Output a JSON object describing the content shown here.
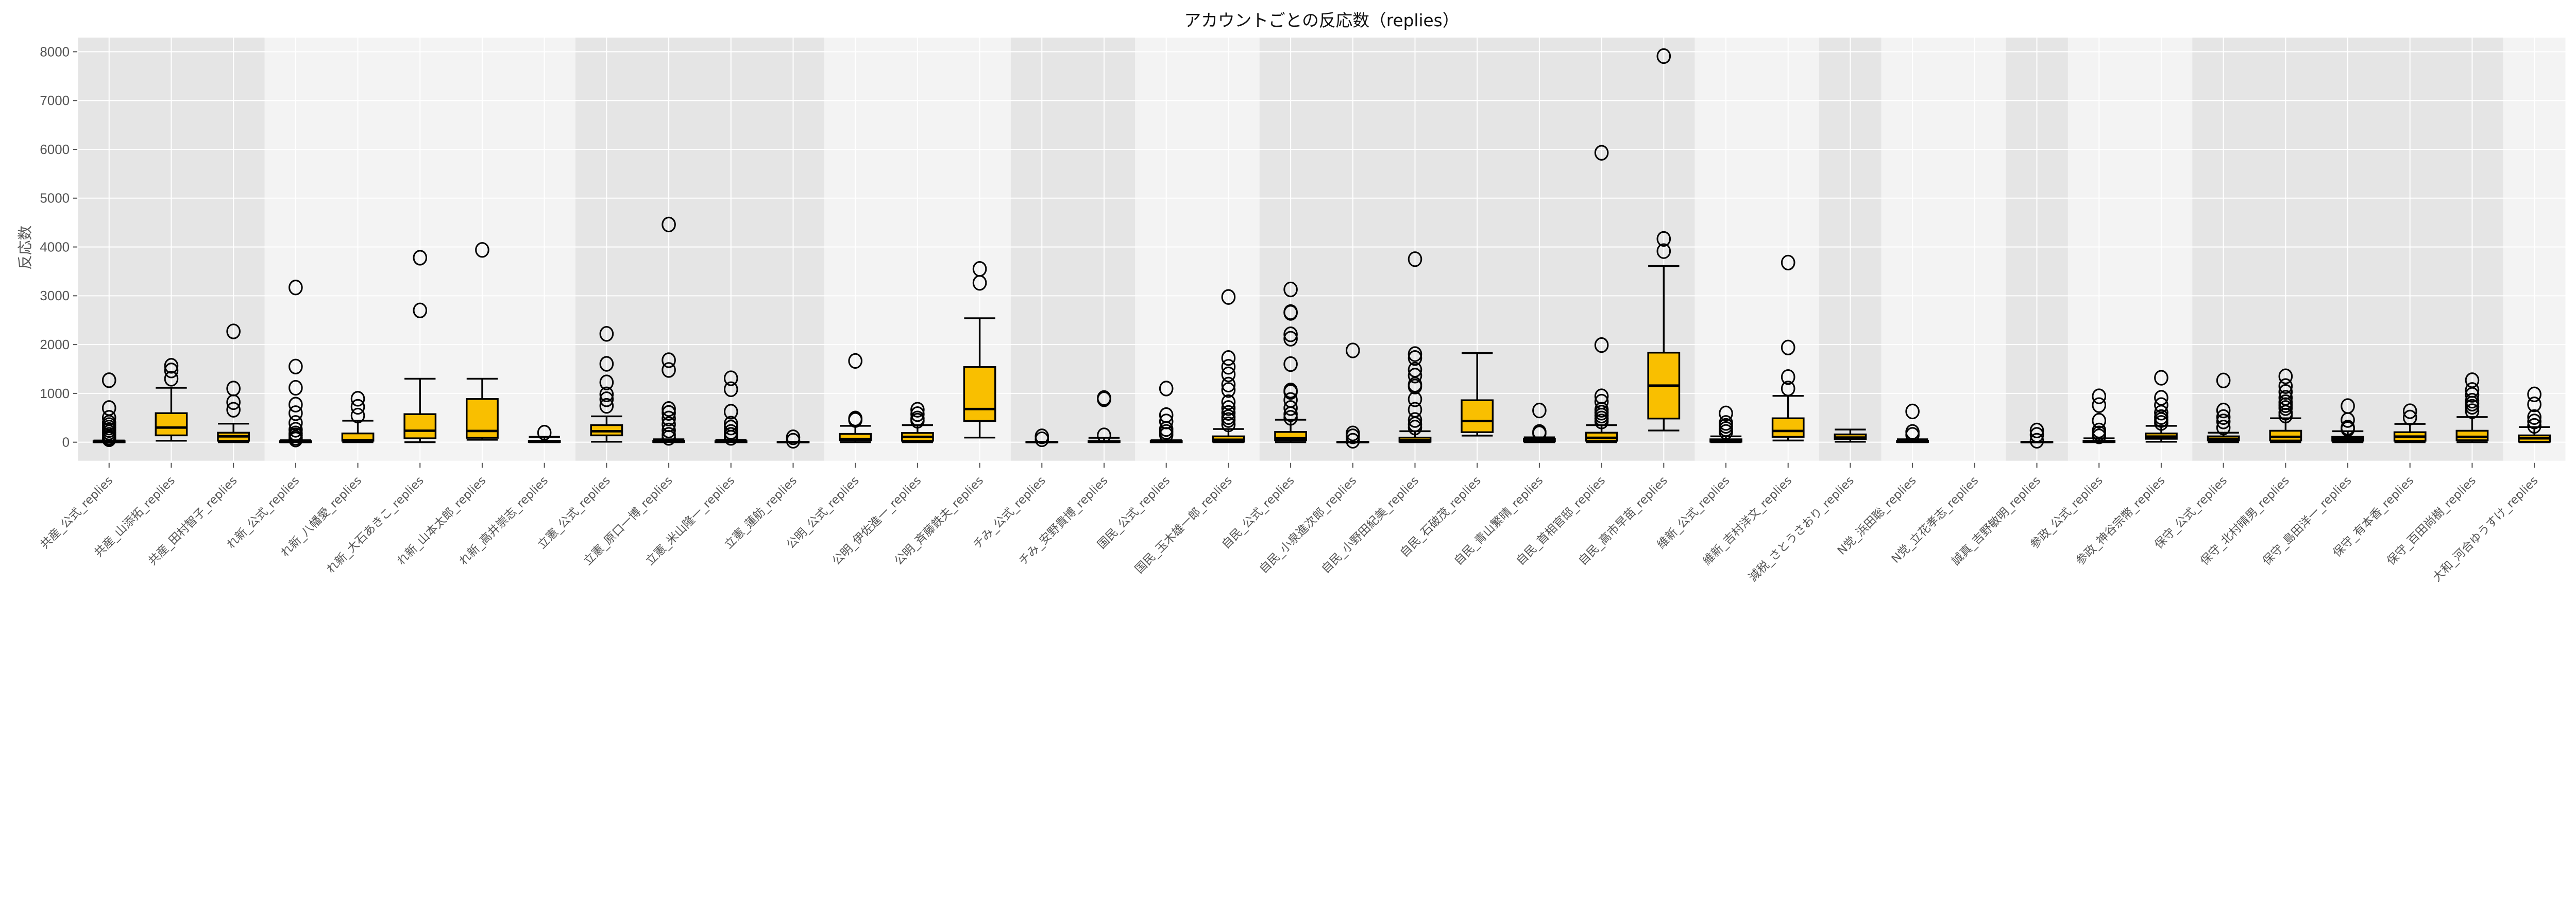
{
  "chart_data": {
    "type": "box",
    "title": "アカウントごとの反応数（replies）",
    "xlabel": "",
    "ylabel": "反応数",
    "ylim": [
      -380,
      8290
    ],
    "yticks": [
      0,
      1000,
      2000,
      3000,
      4000,
      5000,
      6000,
      7000,
      8000
    ],
    "grid": true,
    "colors": {
      "box_fill": "#f9bf00",
      "band_dark": "#e5e5e5",
      "band_light": "#f3f3f3",
      "grid": "#ffffff",
      "edge": "#000000"
    },
    "categories": [
      "共産_公式_replies",
      "共産_山添拓_replies",
      "共産_田村智子_replies",
      "れ新_公式_replies",
      "れ新_八幡愛_replies",
      "れ新_大石あきこ_replies",
      "れ新_山本太郎_replies",
      "れ新_高井崇志_replies",
      "立憲_公式_replies",
      "立憲_原口一博_replies",
      "立憲_米山隆一_replies",
      "立憲_蓮舫_replies",
      "公明_公式_replies",
      "公明_伊佐進一_replies",
      "公明_斉藤鉄夫_replies",
      "チみ_公式_replies",
      "チみ_安野貴博_replies",
      "国民_公式_replies",
      "国民_玉木雄一郎_replies",
      "自民_公式_replies",
      "自民_小泉進次郎_replies",
      "自民_小野田紀美_replies",
      "自民_石破茂_replies",
      "自民_青山繁晴_replies",
      "自民_首相官邸_replies",
      "自民_高市早苗_replies",
      "維新_公式_replies",
      "維新_吉村洋文_replies",
      "減税_さとうさおり_replies",
      "N党_浜田聡_replies",
      "N党_立花孝志_replies",
      "誠真_吉野敏明_replies",
      "参政_公式_replies",
      "参政_神谷宗幣_replies",
      "保守_公式_replies",
      "保守_北村晴男_replies",
      "保守_島田洋一_replies",
      "保守_有本香_replies",
      "保守_百田尚樹_replies",
      "大和_河合ゆうすけ_replies"
    ],
    "boxes": [
      {
        "whislo": 0,
        "q1": 0,
        "med": 5,
        "q3": 20,
        "whishi": 35,
        "fliers": [
          1270,
          700,
          500,
          400,
          350,
          300,
          250,
          200,
          150,
          100,
          80,
          60
        ]
      },
      {
        "whislo": 30,
        "q1": 140,
        "med": 300,
        "q3": 595,
        "whishi": 1115,
        "fliers": [
          1565,
          1470,
          1300
        ]
      },
      {
        "whislo": 0,
        "q1": 30,
        "med": 120,
        "q3": 195,
        "whishi": 380,
        "fliers": [
          2270,
          1100,
          820,
          665
        ]
      },
      {
        "whislo": 0,
        "q1": 0,
        "med": 5,
        "q3": 20,
        "whishi": 40,
        "fliers": [
          3170,
          1550,
          1115,
          770,
          595,
          395,
          255,
          180,
          140,
          90,
          55
        ]
      },
      {
        "whislo": 0,
        "q1": 30,
        "med": 40,
        "q3": 180,
        "whishi": 440,
        "fliers": [
          890,
          725,
          545
        ]
      },
      {
        "whislo": 0,
        "q1": 80,
        "med": 235,
        "q3": 575,
        "whishi": 1300,
        "fliers": [
          3780,
          2700
        ]
      },
      {
        "whislo": 50,
        "q1": 90,
        "med": 230,
        "q3": 885,
        "whishi": 1300,
        "fliers": [
          3940
        ]
      },
      {
        "whislo": 0,
        "q1": 5,
        "med": 15,
        "q3": 30,
        "whishi": 110,
        "fliers": [
          195
        ]
      },
      {
        "whislo": 10,
        "q1": 140,
        "med": 225,
        "q3": 350,
        "whishi": 530,
        "fliers": [
          2220,
          1605,
          1225,
          980,
          880,
          745
        ]
      },
      {
        "whislo": 0,
        "q1": 5,
        "med": 15,
        "q3": 30,
        "whishi": 60,
        "fliers": [
          4460,
          1680,
          1480,
          680,
          600,
          485,
          365,
          240,
          150,
          90
        ]
      },
      {
        "whislo": 0,
        "q1": 0,
        "med": 8,
        "q3": 20,
        "whishi": 45,
        "fliers": [
          1310,
          1085,
          625,
          380,
          300,
          210,
          150,
          90
        ]
      },
      {
        "whislo": 0,
        "q1": 0,
        "med": 2,
        "q3": 5,
        "whishi": 10,
        "fliers": [
          100,
          30
        ]
      },
      {
        "whislo": 0,
        "q1": 40,
        "med": 65,
        "q3": 170,
        "whishi": 335,
        "fliers": [
          1665,
          485,
          455
        ]
      },
      {
        "whislo": 0,
        "q1": 30,
        "med": 110,
        "q3": 190,
        "whishi": 350,
        "fliers": [
          665,
          575,
          485,
          440
        ]
      },
      {
        "whislo": 95,
        "q1": 435,
        "med": 680,
        "q3": 1540,
        "whishi": 2540,
        "fliers": [
          3550,
          3265
        ]
      },
      {
        "whislo": 0,
        "q1": 0,
        "med": 2,
        "q3": 5,
        "whishi": 10,
        "fliers": [
          120,
          60
        ]
      },
      {
        "whislo": 0,
        "q1": 5,
        "med": 10,
        "q3": 25,
        "whishi": 90,
        "fliers": [
          905,
          880,
          140
        ]
      },
      {
        "whislo": 0,
        "q1": 0,
        "med": 8,
        "q3": 25,
        "whishi": 40,
        "fliers": [
          1100,
          555,
          425,
          270,
          210,
          150
        ]
      },
      {
        "whislo": 0,
        "q1": 10,
        "med": 50,
        "q3": 120,
        "whishi": 270,
        "fliers": [
          2975,
          1725,
          1545,
          1390,
          1180,
          1070,
          820,
          700,
          600,
          515,
          455,
          365
        ]
      },
      {
        "whislo": 0,
        "q1": 40,
        "med": 80,
        "q3": 210,
        "whishi": 460,
        "fliers": [
          3130,
          2665,
          2650,
          2210,
          2120,
          1600,
          1060,
          1030,
          865,
          700,
          575,
          500
        ]
      },
      {
        "whislo": 0,
        "q1": 0,
        "med": 2,
        "q3": 5,
        "whishi": 10,
        "fliers": [
          1880,
          180,
          120,
          30
        ]
      },
      {
        "whislo": 0,
        "q1": 10,
        "med": 40,
        "q3": 95,
        "whishi": 225,
        "fliers": [
          3750,
          1805,
          1725,
          1485,
          1365,
          1180,
          1140,
          880,
          665,
          455,
          365,
          300
        ]
      },
      {
        "whislo": 135,
        "q1": 205,
        "med": 435,
        "q3": 860,
        "whishi": 1825,
        "fliers": []
      },
      {
        "whislo": 0,
        "q1": 15,
        "med": 40,
        "q3": 70,
        "whishi": 100,
        "fliers": [
          650,
          210,
          180
        ]
      },
      {
        "whislo": 0,
        "q1": 30,
        "med": 90,
        "q3": 195,
        "whishi": 350,
        "fliers": [
          5930,
          1990,
          940,
          830,
          665,
          605,
          545,
          485,
          425
        ]
      },
      {
        "whislo": 240,
        "q1": 485,
        "med": 1160,
        "q3": 1835,
        "whishi": 3610,
        "fliers": [
          7910,
          4165,
          3915
        ]
      },
      {
        "whislo": 0,
        "q1": 10,
        "med": 30,
        "q3": 60,
        "whishi": 120,
        "fliers": [
          590,
          395,
          335,
          270,
          210
        ]
      },
      {
        "whislo": 35,
        "q1": 110,
        "med": 230,
        "q3": 490,
        "whishi": 950,
        "fliers": [
          3680,
          1940,
          1335,
          1100
        ]
      },
      {
        "whislo": 10,
        "q1": 65,
        "med": 95,
        "q3": 160,
        "whishi": 260,
        "fliers": []
      },
      {
        "whislo": 0,
        "q1": 5,
        "med": 10,
        "q3": 25,
        "whishi": 60,
        "fliers": [
          630,
          210,
          150
        ]
      },
      null,
      {
        "whislo": 0,
        "q1": 0,
        "med": 2,
        "q3": 5,
        "whishi": 10,
        "fliers": [
          240,
          150,
          30
        ]
      },
      {
        "whislo": 0,
        "q1": 5,
        "med": 15,
        "q3": 30,
        "whishi": 80,
        "fliers": [
          940,
          760,
          440,
          240,
          180,
          120
        ]
      },
      {
        "whislo": 10,
        "q1": 70,
        "med": 115,
        "q3": 180,
        "whishi": 335,
        "fliers": [
          1320,
          910,
          760,
          605,
          515,
          455,
          395
        ]
      },
      {
        "whislo": 0,
        "q1": 35,
        "med": 70,
        "q3": 120,
        "whishi": 195,
        "fliers": [
          1265,
          650,
          515,
          425,
          300
        ]
      },
      {
        "whislo": 0,
        "q1": 35,
        "med": 110,
        "q3": 235,
        "whishi": 490,
        "fliers": [
          1350,
          1150,
          1030,
          910,
          820,
          760,
          700,
          605,
          545
        ]
      },
      {
        "whislo": 0,
        "q1": 30,
        "med": 70,
        "q3": 110,
        "whishi": 225,
        "fliers": [
          740,
          455,
          300,
          270
        ]
      },
      {
        "whislo": 0,
        "q1": 30,
        "med": 115,
        "q3": 205,
        "whishi": 375,
        "fliers": [
          635,
          505
        ]
      },
      {
        "whislo": 0,
        "q1": 40,
        "med": 110,
        "q3": 235,
        "whishi": 515,
        "fliers": [
          1270,
          1070,
          970,
          850,
          790,
          725,
          635
        ]
      },
      {
        "whislo": 0,
        "q1": 10,
        "med": 80,
        "q3": 140,
        "whishi": 310,
        "fliers": [
          980,
          775,
          515,
          425,
          335
        ]
      }
    ]
  }
}
